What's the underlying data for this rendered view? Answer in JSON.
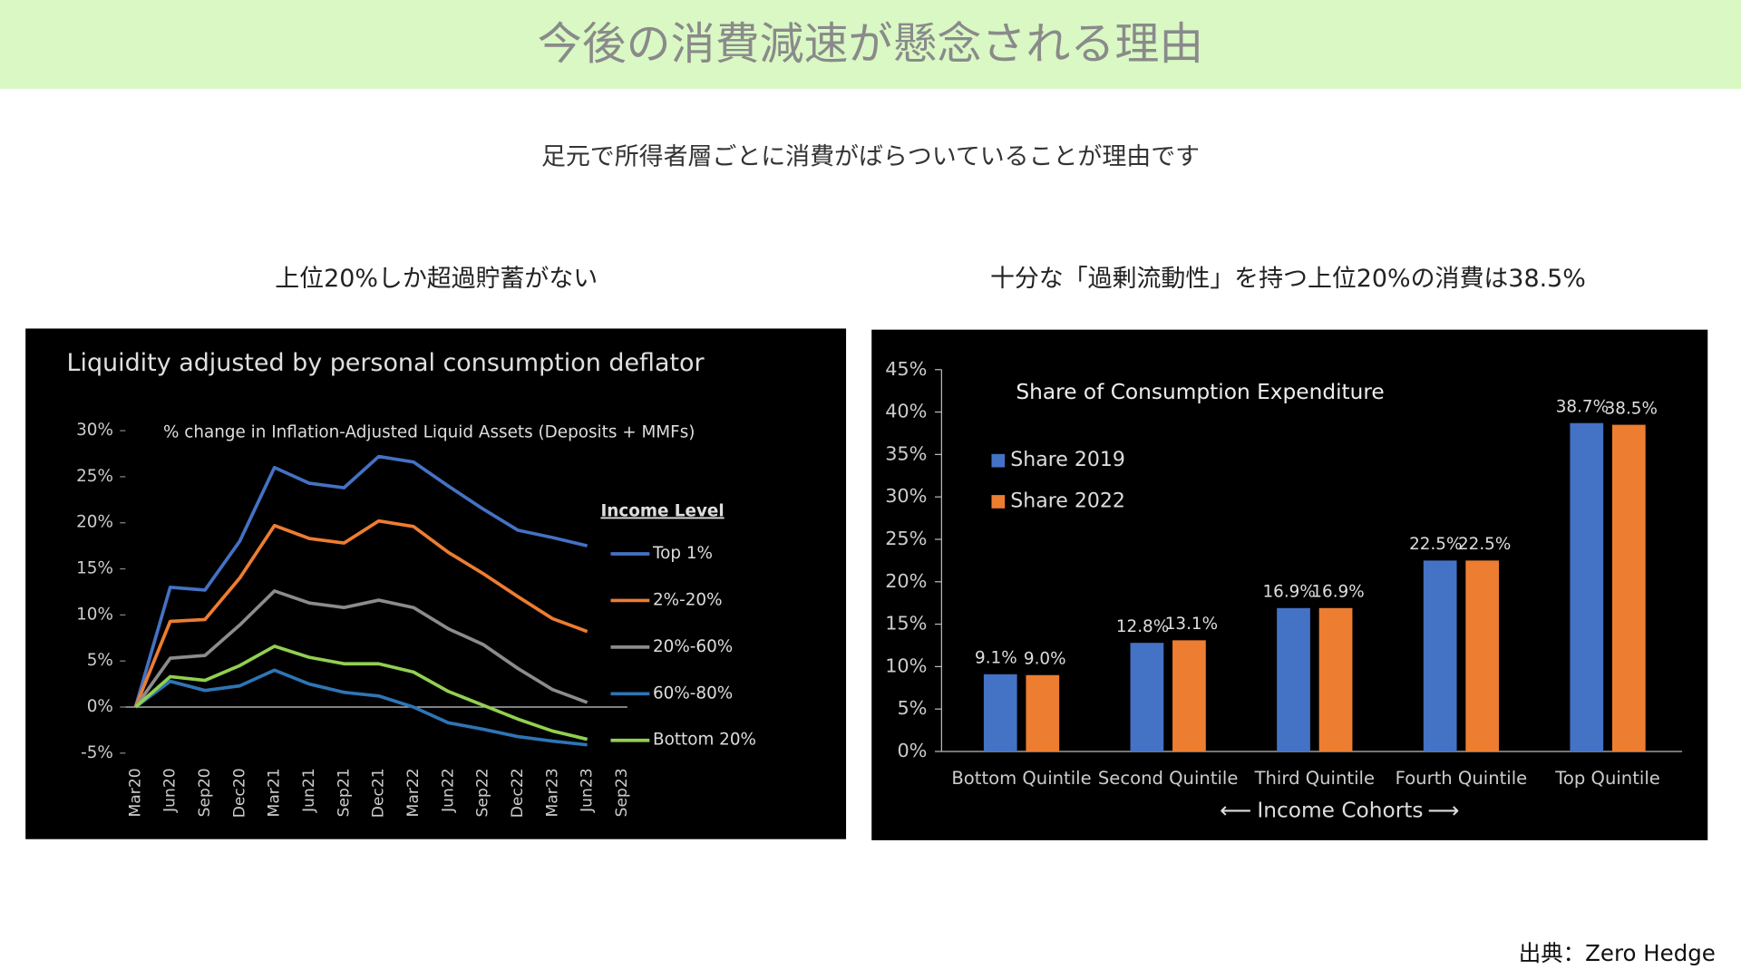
{
  "header": {
    "title": "今後の消費減速が懸念される理由"
  },
  "subtitle": "足元で所得者層ごとに消費がばらついていることが理由です",
  "left_caption": "上位20%しか超過貯蓄がない",
  "right_caption": "十分な「過剰流動性」を持つ上位20%の消費は38.5%",
  "source": "出典：Zero Hedge",
  "chart_data": [
    {
      "type": "line",
      "title": "Liquidity adjusted by personal consumption deflator",
      "subtitle": "% change in Inflation-Adjusted Liquid Assets (Deposits + MMFs)",
      "legend_title": "Income Level",
      "categories": [
        "Mar20",
        "Jun20",
        "Sep20",
        "Dec20",
        "Mar21",
        "Jun21",
        "Sep21",
        "Dec21",
        "Mar22",
        "Jun22",
        "Sep22",
        "Dec22",
        "Mar23",
        "Jun23",
        "Sep23"
      ],
      "series": [
        {
          "name": "Top 1%",
          "color": "#4472c4",
          "values": [
            0,
            13,
            12.7,
            18,
            26,
            24.3,
            23.8,
            27.2,
            26.6,
            24,
            21.5,
            19.2,
            18.4,
            17.5,
            null
          ]
        },
        {
          "name": "2%-20%",
          "color": "#ed7d31",
          "values": [
            0,
            9.3,
            9.5,
            14,
            19.7,
            18.3,
            17.8,
            20.2,
            19.6,
            16.8,
            14.5,
            12,
            9.6,
            8.2,
            null
          ]
        },
        {
          "name": "20%-60%",
          "color": "#8c8c8c",
          "values": [
            0,
            5.3,
            5.6,
            8.9,
            12.6,
            11.3,
            10.8,
            11.6,
            10.8,
            8.5,
            6.8,
            4.2,
            1.9,
            0.5,
            null
          ]
        },
        {
          "name": "60%-80%",
          "color": "#2e75b6",
          "values": [
            0,
            2.8,
            1.8,
            2.3,
            4,
            2.5,
            1.6,
            1.2,
            0,
            -1.7,
            -2.4,
            -3.2,
            -3.7,
            -4.1,
            null
          ]
        },
        {
          "name": "Bottom 20%",
          "color": "#92d050",
          "values": [
            0,
            3.3,
            2.9,
            4.5,
            6.6,
            5.4,
            4.7,
            4.7,
            3.8,
            1.7,
            0.2,
            -1.3,
            -2.6,
            -3.5,
            null
          ]
        }
      ],
      "ylim": [
        -5,
        30
      ],
      "yticks": [
        {
          "value": -5,
          "label": "-5%"
        },
        {
          "value": 0,
          "label": "0%"
        },
        {
          "value": 5,
          "label": "5%"
        },
        {
          "value": 10,
          "label": "10%"
        },
        {
          "value": 15,
          "label": "15%"
        },
        {
          "value": 20,
          "label": "20%"
        },
        {
          "value": 25,
          "label": "25%"
        },
        {
          "value": 30,
          "label": "30%"
        }
      ],
      "legend": "right"
    },
    {
      "type": "bar",
      "title": "Share of Consumption Expenditure",
      "x_label": "Income Cohorts",
      "categories": [
        "Bottom Quintile",
        "Second Quintile",
        "Third Quintile",
        "Fourth Quintile",
        "Top Quintile"
      ],
      "series": [
        {
          "name": "Share 2019",
          "color": "#4472c4",
          "values": [
            9.1,
            12.8,
            16.9,
            22.5,
            38.7
          ],
          "value_labels": [
            "9.1%",
            "12.8%",
            "16.9%",
            "22.5%",
            "38.7%"
          ]
        },
        {
          "name": "Share 2022",
          "color": "#ed7d31",
          "values": [
            9.0,
            13.1,
            16.9,
            22.5,
            38.5
          ],
          "value_labels": [
            "9.0%",
            "13.1%",
            "16.9%",
            "22.5%",
            "38.5%"
          ]
        }
      ],
      "ylim": [
        0,
        45
      ],
      "yticks": [
        {
          "value": 0,
          "label": "0%"
        },
        {
          "value": 5,
          "label": "5%"
        },
        {
          "value": 10,
          "label": "10%"
        },
        {
          "value": 15,
          "label": "15%"
        },
        {
          "value": 20,
          "label": "20%"
        },
        {
          "value": 25,
          "label": "25%"
        },
        {
          "value": 30,
          "label": "30%"
        },
        {
          "value": 35,
          "label": "35%"
        },
        {
          "value": 40,
          "label": "40%"
        },
        {
          "value": 45,
          "label": "45%"
        }
      ],
      "legend": "top-left"
    }
  ]
}
